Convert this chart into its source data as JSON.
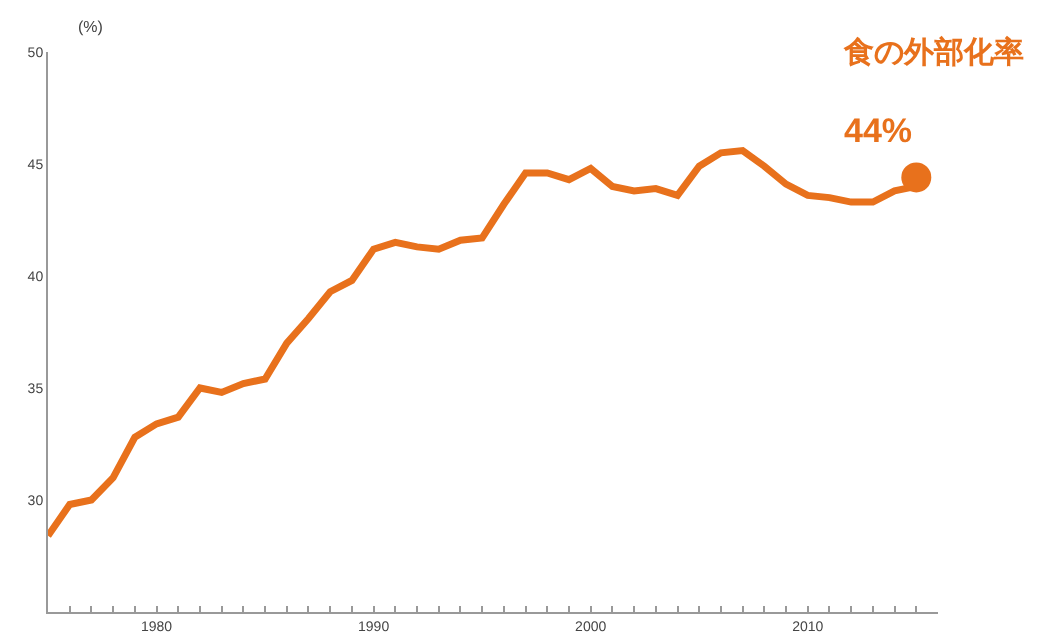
{
  "chart_data": {
    "type": "line",
    "ylabel": "(%)",
    "x": [
      1975,
      1976,
      1977,
      1978,
      1979,
      1980,
      1981,
      1982,
      1983,
      1984,
      1985,
      1986,
      1987,
      1988,
      1989,
      1990,
      1991,
      1992,
      1993,
      1994,
      1995,
      1996,
      1997,
      1998,
      1999,
      2000,
      2001,
      2002,
      2003,
      2004,
      2005,
      2006,
      2007,
      2008,
      2009,
      2010,
      2011,
      2012,
      2013,
      2014,
      2015
    ],
    "series": [
      {
        "color": "#e8711c",
        "marker": "none",
        "values": [
          28.4,
          29.8,
          30.0,
          31.0,
          32.8,
          33.4,
          33.7,
          35.0,
          34.8,
          35.2,
          35.4,
          37.0,
          38.1,
          39.3,
          39.8,
          41.2,
          41.5,
          41.3,
          41.2,
          41.6,
          41.7,
          43.2,
          44.6,
          44.6,
          44.3,
          44.8,
          44.0,
          43.8,
          43.9,
          43.6,
          44.9,
          45.5,
          45.6,
          44.9,
          44.1,
          43.6,
          43.5,
          43.3,
          43.3,
          43.8,
          44.0
        ]
      },
      {
        "type": "scatter",
        "color": "#e8711c",
        "marker": "circle",
        "x": [
          2015
        ],
        "values": [
          44.4
        ]
      }
    ],
    "xlim": [
      1975,
      2016
    ],
    "xticks": [
      {
        "value": 1976,
        "label": null
      },
      {
        "value": 1977,
        "label": null
      },
      {
        "value": 1978,
        "label": null
      },
      {
        "value": 1979,
        "label": null
      },
      1980,
      {
        "value": 1981,
        "label": null
      },
      {
        "value": 1982,
        "label": null
      },
      {
        "value": 1983,
        "label": null
      },
      {
        "value": 1984,
        "label": null
      },
      {
        "value": 1985,
        "label": null
      },
      {
        "value": 1986,
        "label": null
      },
      {
        "value": 1987,
        "label": null
      },
      {
        "value": 1988,
        "label": null
      },
      {
        "value": 1989,
        "label": null
      },
      1990,
      {
        "value": 1991,
        "label": null
      },
      {
        "value": 1992,
        "label": null
      },
      {
        "value": 1993,
        "label": null
      },
      {
        "value": 1994,
        "label": null
      },
      {
        "value": 1995,
        "label": null
      },
      {
        "value": 1996,
        "label": null
      },
      {
        "value": 1997,
        "label": null
      },
      {
        "value": 1998,
        "label": null
      },
      {
        "value": 1999,
        "label": null
      },
      2000,
      {
        "value": 2001,
        "label": null
      },
      {
        "value": 2002,
        "label": null
      },
      {
        "value": 2003,
        "label": null
      },
      {
        "value": 2004,
        "label": null
      },
      {
        "value": 2005,
        "label": null
      },
      {
        "value": 2006,
        "label": null
      },
      {
        "value": 2007,
        "label": null
      },
      {
        "value": 2008,
        "label": null
      },
      {
        "value": 2009,
        "label": null
      },
      2010,
      {
        "value": 2011,
        "label": null
      },
      {
        "value": 2012,
        "label": null
      },
      {
        "value": 2013,
        "label": null
      },
      {
        "value": 2014,
        "label": null
      },
      {
        "value": 2015,
        "label": null
      }
    ],
    "ylim": [
      25,
      50
    ],
    "yticks": [
      30,
      35,
      40,
      45,
      50
    ],
    "grid": false,
    "annotations": [
      "食の外部化率",
      {
        "text": "44%",
        "x": 2015,
        "y": 44.4
      }
    ]
  }
}
